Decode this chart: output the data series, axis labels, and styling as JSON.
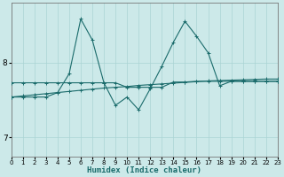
{
  "xlabel": "Humidex (Indice chaleur)",
  "bg_color": "#cce9e9",
  "line_color": "#1a6b6b",
  "grid_color": "#aad4d4",
  "x_ticks": [
    0,
    1,
    2,
    3,
    4,
    5,
    6,
    7,
    8,
    9,
    10,
    11,
    12,
    13,
    14,
    15,
    16,
    17,
    18,
    19,
    20,
    21,
    22,
    23
  ],
  "y_ticks": [
    7,
    8
  ],
  "ylim": [
    6.75,
    8.8
  ],
  "xlim": [
    0,
    23
  ],
  "line1_x": [
    0,
    1,
    2,
    3,
    4,
    5,
    6,
    7,
    8,
    9,
    10,
    11,
    12,
    13,
    14,
    15,
    16,
    17,
    18,
    19,
    20,
    21,
    22,
    23
  ],
  "line1_y": [
    7.54,
    7.555,
    7.57,
    7.585,
    7.6,
    7.615,
    7.63,
    7.645,
    7.66,
    7.67,
    7.68,
    7.695,
    7.705,
    7.715,
    7.725,
    7.735,
    7.745,
    7.755,
    7.76,
    7.765,
    7.77,
    7.775,
    7.78,
    7.78
  ],
  "line2_x": [
    0,
    1,
    2,
    3,
    4,
    5,
    6,
    7,
    8,
    9,
    10,
    11,
    12,
    13,
    14,
    15,
    16,
    17,
    18,
    19,
    20,
    21,
    22,
    23
  ],
  "line2_y": [
    7.73,
    7.73,
    7.73,
    7.73,
    7.73,
    7.73,
    7.73,
    7.73,
    7.73,
    7.73,
    7.67,
    7.67,
    7.67,
    7.67,
    7.74,
    7.74,
    7.75,
    7.75,
    7.75,
    7.75,
    7.75,
    7.75,
    7.75,
    7.75
  ],
  "line3_x": [
    0,
    1,
    2,
    3,
    4,
    5,
    6,
    7,
    8,
    9,
    10,
    11,
    12,
    13,
    14,
    15,
    16,
    17,
    18,
    19,
    20,
    21,
    22,
    23
  ],
  "line3_y": [
    7.54,
    7.54,
    7.54,
    7.54,
    7.6,
    7.85,
    8.58,
    8.3,
    7.73,
    7.43,
    7.54,
    7.37,
    7.65,
    7.95,
    8.27,
    8.55,
    8.35,
    8.13,
    7.69,
    7.75,
    7.75,
    7.75,
    7.75,
    7.75
  ]
}
